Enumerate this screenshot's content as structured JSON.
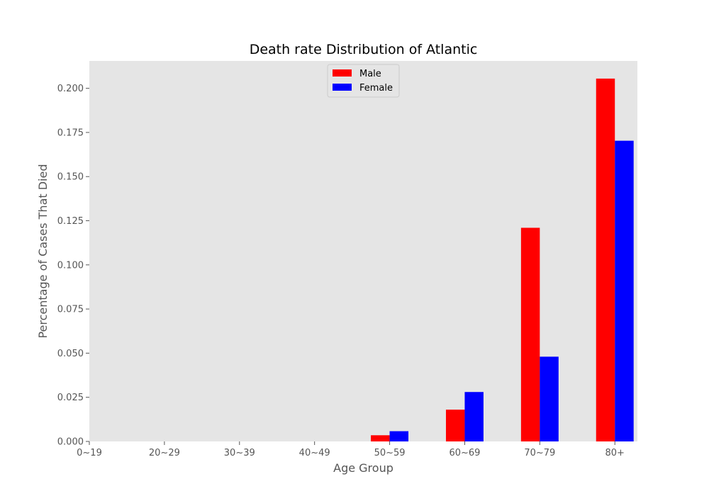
{
  "chart_data": {
    "type": "bar",
    "title": "Death rate Distribution of Atlantic",
    "xlabel": "Age Group",
    "ylabel": "Percentage of Cases That Died",
    "categories": [
      "0~19",
      "20~29",
      "30~39",
      "40~49",
      "50~59",
      "60~69",
      "70~79",
      "80+"
    ],
    "series": [
      {
        "name": "Male",
        "color": "#ff0000",
        "values": [
          0,
          0,
          0,
          0,
          0.0035,
          0.018,
          0.121,
          0.2055
        ]
      },
      {
        "name": "Female",
        "color": "#0000ff",
        "values": [
          0,
          0,
          0,
          0,
          0.0058,
          0.028,
          0.048,
          0.1703
        ]
      }
    ],
    "ylim": [
      0,
      0.2155
    ],
    "yticks": [
      "0.000",
      "0.025",
      "0.050",
      "0.075",
      "0.100",
      "0.125",
      "0.150",
      "0.175",
      "0.200"
    ],
    "grid": false,
    "legend_position": "upper-center",
    "plot_background": "#e5e5e5"
  }
}
